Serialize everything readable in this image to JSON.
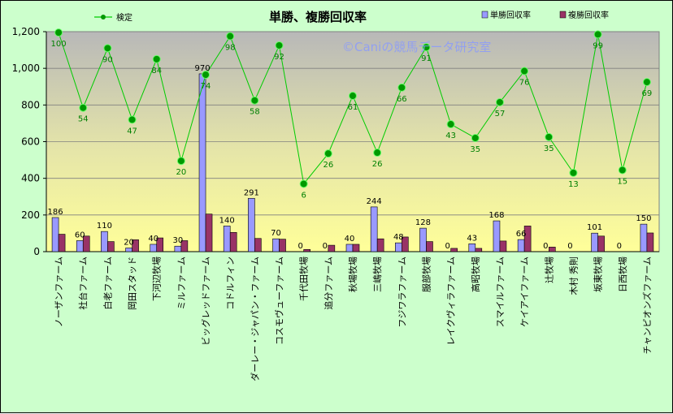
{
  "chart_data": {
    "type": "bar",
    "title": "単勝、複勝回収率",
    "watermark": "©Caniの競馬データ研究室",
    "ylim": [
      0,
      1200
    ],
    "yticks": [
      "0",
      "200",
      "400",
      "600",
      "800",
      "1,000",
      "1,200"
    ],
    "categories": [
      "ノーザンファーム",
      "社台ファーム",
      "白老ファーム",
      "岡田スタッド",
      "下河辺牧場",
      "ミルファーム",
      "ビッグレッドファーム",
      "コドルフィン",
      "ダーレー・ジャパン・ファーム",
      "コスモヴューファーム",
      "千代田牧場",
      "追分ファーム",
      "秋場牧場",
      "三嶋牧場",
      "フジワラファーム",
      "服部牧場",
      "レイクヴィラファーム",
      "高昭牧場",
      "スマイルファーム",
      "ケイアイファーム",
      "辻牧場",
      "木村 秀則",
      "坂東牧場",
      "日西牧場",
      "チャンピオンズファーム"
    ],
    "series": [
      {
        "name": "単勝回収率",
        "color": "#9999FF",
        "values": [
          186,
          60,
          110,
          20,
          40,
          30,
          970,
          140,
          291,
          70,
          0,
          0,
          40,
          244,
          48,
          128,
          0,
          43,
          168,
          66,
          0,
          0,
          101,
          0,
          150
        ],
        "labels": [
          "186",
          "60",
          "110",
          "20",
          "40",
          "30",
          "970",
          "140",
          "291",
          "70",
          "0",
          "0",
          "40",
          "244",
          "48",
          "128",
          "0",
          "43",
          "168",
          "66",
          "0",
          "0",
          "101",
          "0",
          "150"
        ]
      },
      {
        "name": "複勝回収率",
        "color": "#993366",
        "values": [
          95,
          85,
          55,
          65,
          75,
          60,
          205,
          105,
          72,
          68,
          12,
          35,
          40,
          70,
          80,
          55,
          18,
          18,
          58,
          140,
          25,
          0,
          85,
          0,
          102
        ]
      },
      {
        "name": "検定",
        "color": "#00CC00",
        "values": [
          1195,
          785,
          1110,
          720,
          1050,
          495,
          965,
          1175,
          825,
          1125,
          370,
          535,
          850,
          540,
          895,
          1115,
          695,
          620,
          815,
          985,
          625,
          430,
          1185,
          445,
          925
        ],
        "labels": [
          "100",
          "54",
          "90",
          "47",
          "84",
          "20",
          "74",
          "98",
          "58",
          "92",
          "6",
          "26",
          "61",
          "26",
          "66",
          "91",
          "43",
          "35",
          "57",
          "76",
          "35",
          "13",
          "99",
          "15",
          "69"
        ]
      }
    ]
  }
}
